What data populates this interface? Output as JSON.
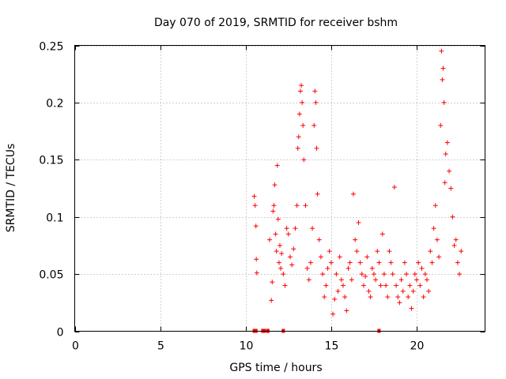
{
  "chart_data": {
    "type": "scatter",
    "title": "Day 070 of 2019, SRMTID for receiver bshm",
    "xlabel": "GPS time / hours",
    "ylabel": "SRMTID / TECUs",
    "xlim": [
      0,
      24
    ],
    "ylim": [
      0,
      0.25
    ],
    "xticks": [
      0,
      5,
      10,
      15,
      20
    ],
    "xtick_labels": [
      "0",
      "5",
      "10",
      "15",
      "20"
    ],
    "yticks": [
      0,
      0.05,
      0.1,
      0.15,
      0.2,
      0.25
    ],
    "ytick_labels": [
      "0",
      "0.05",
      "0.1",
      "0.15",
      "0.2",
      "0.25"
    ],
    "grid": true,
    "marker": "plus",
    "color": "#ff0000",
    "series": [
      {
        "name": "SRMTID",
        "x": [
          10.5,
          10.55,
          10.6,
          10.62,
          10.65,
          11.4,
          11.5,
          11.55,
          11.6,
          11.65,
          11.7,
          11.75,
          11.8,
          11.85,
          11.9,
          11.95,
          12.0,
          12.05,
          12.1,
          12.2,
          12.3,
          12.4,
          12.5,
          12.6,
          12.7,
          12.8,
          12.9,
          13.0,
          13.05,
          13.1,
          13.15,
          13.2,
          13.25,
          13.3,
          13.35,
          13.4,
          13.5,
          13.6,
          13.7,
          13.8,
          13.9,
          14.0,
          14.05,
          14.1,
          14.15,
          14.2,
          14.3,
          14.4,
          14.5,
          14.6,
          14.7,
          14.8,
          14.9,
          15.0,
          15.1,
          15.2,
          15.3,
          15.4,
          15.5,
          15.6,
          15.7,
          15.8,
          15.9,
          16.0,
          16.1,
          16.2,
          16.3,
          16.4,
          16.5,
          16.6,
          16.7,
          16.8,
          16.9,
          17.0,
          17.1,
          17.2,
          17.3,
          17.4,
          17.5,
          17.6,
          17.7,
          17.8,
          17.9,
          18.0,
          18.1,
          18.2,
          18.3,
          18.4,
          18.5,
          18.6,
          18.7,
          18.8,
          18.9,
          19.0,
          19.1,
          19.2,
          19.3,
          19.4,
          19.5,
          19.6,
          19.7,
          19.8,
          19.9,
          20.0,
          20.1,
          20.2,
          20.3,
          20.4,
          20.5,
          20.6,
          20.7,
          20.8,
          20.9,
          21.0,
          21.1,
          21.2,
          21.3,
          21.4,
          21.45,
          21.5,
          21.55,
          21.6,
          21.65,
          21.7,
          21.8,
          21.9,
          22.0,
          22.1,
          22.2,
          22.3,
          22.4,
          22.5,
          22.6
        ],
        "y": [
          0.118,
          0.11,
          0.092,
          0.063,
          0.051,
          0.08,
          0.027,
          0.043,
          0.105,
          0.11,
          0.128,
          0.085,
          0.07,
          0.145,
          0.098,
          0.06,
          0.075,
          0.055,
          0.068,
          0.05,
          0.04,
          0.09,
          0.085,
          0.065,
          0.058,
          0.072,
          0.09,
          0.11,
          0.16,
          0.17,
          0.19,
          0.21,
          0.215,
          0.2,
          0.18,
          0.15,
          0.11,
          0.055,
          0.045,
          0.06,
          0.09,
          0.18,
          0.21,
          0.2,
          0.16,
          0.12,
          0.08,
          0.065,
          0.05,
          0.03,
          0.04,
          0.055,
          0.07,
          0.06,
          0.015,
          0.028,
          0.05,
          0.035,
          0.065,
          0.045,
          0.04,
          0.03,
          0.018,
          0.055,
          0.06,
          0.045,
          0.12,
          0.08,
          0.07,
          0.095,
          0.06,
          0.05,
          0.04,
          0.048,
          0.065,
          0.035,
          0.03,
          0.055,
          0.05,
          0.045,
          0.07,
          0.06,
          0.04,
          0.085,
          0.05,
          0.04,
          0.03,
          0.07,
          0.06,
          0.05,
          0.126,
          0.04,
          0.03,
          0.025,
          0.045,
          0.035,
          0.06,
          0.05,
          0.03,
          0.04,
          0.02,
          0.035,
          0.05,
          0.045,
          0.06,
          0.04,
          0.055,
          0.03,
          0.05,
          0.045,
          0.035,
          0.07,
          0.06,
          0.09,
          0.11,
          0.08,
          0.065,
          0.18,
          0.245,
          0.22,
          0.23,
          0.2,
          0.13,
          0.155,
          0.165,
          0.14,
          0.125,
          0.1,
          0.075,
          0.08,
          0.06,
          0.05,
          0.07
        ],
        "zero_markers_x": [
          10.5,
          10.6,
          11.0,
          11.1,
          11.3,
          12.2,
          17.8
        ]
      }
    ]
  }
}
